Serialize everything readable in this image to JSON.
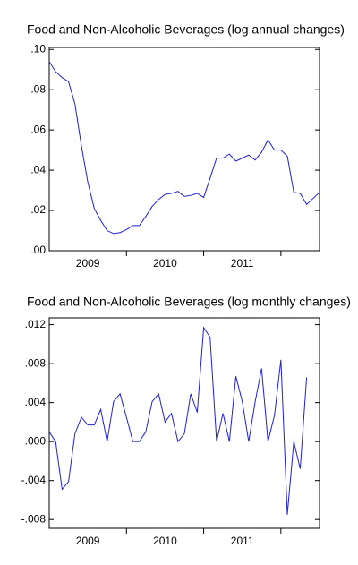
{
  "chart_data": [
    {
      "type": "line",
      "title": "Food and Non-Alcoholic Beverages (log annual changes)",
      "x": [
        2009,
        2009.083,
        2009.167,
        2009.25,
        2009.333,
        2009.417,
        2009.5,
        2009.583,
        2009.667,
        2009.75,
        2009.833,
        2009.917,
        2010,
        2010.083,
        2010.167,
        2010.25,
        2010.333,
        2010.417,
        2010.5,
        2010.583,
        2010.667,
        2010.75,
        2010.833,
        2010.917,
        2011,
        2011.083,
        2011.167,
        2011.25,
        2011.333,
        2011.417,
        2011.5,
        2011.583,
        2011.667,
        2011.75,
        2011.833,
        2011.917,
        2012,
        2012.083,
        2012.167,
        2012.25,
        2012.333,
        2012.417,
        2012.5
      ],
      "series": [
        {
          "color": "#1f1fd6",
          "values": [
            0.094,
            0.089,
            0.086,
            0.084,
            0.073,
            0.052,
            0.034,
            0.021,
            0.015,
            0.01,
            0.0085,
            0.009,
            0.0105,
            0.0125,
            0.0125,
            0.017,
            0.022,
            0.0255,
            0.028,
            0.0285,
            0.0295,
            0.027,
            0.0275,
            0.0285,
            0.0265,
            0.036,
            0.046,
            0.046,
            0.048,
            0.0445,
            0.046,
            0.0475,
            0.045,
            0.049,
            0.055,
            0.05,
            0.05,
            0.047,
            0.029,
            0.0285,
            0.023,
            0.026,
            0.029
          ]
        }
      ],
      "xlim": [
        2009,
        2012.5
      ],
      "xticks": [
        {
          "value": 2009.5,
          "label": "2009"
        },
        {
          "value": 2010.5,
          "label": "2010"
        },
        {
          "value": 2011.5,
          "label": "2011"
        }
      ],
      "ylim": [
        0,
        0.101
      ],
      "yticks": [
        {
          "value": 0,
          "label": ".00"
        },
        {
          "value": 0.02,
          "label": ".02"
        },
        {
          "value": 0.04,
          "label": ".04"
        },
        {
          "value": 0.06,
          "label": ".06"
        },
        {
          "value": 0.08,
          "label": ".08"
        },
        {
          "value": 0.1,
          "label": ".10"
        }
      ]
    },
    {
      "type": "line",
      "title": "Food and Non-Alcoholic Beverages (log monthly changes)",
      "x": [
        2009,
        2009.083,
        2009.167,
        2009.25,
        2009.333,
        2009.417,
        2009.5,
        2009.583,
        2009.667,
        2009.75,
        2009.833,
        2009.917,
        2010,
        2010.083,
        2010.167,
        2010.25,
        2010.333,
        2010.417,
        2010.5,
        2010.583,
        2010.667,
        2010.75,
        2010.833,
        2010.917,
        2011,
        2011.083,
        2011.167,
        2011.25,
        2011.333,
        2011.417,
        2011.5,
        2011.583,
        2011.667,
        2011.75,
        2011.833,
        2011.917,
        2012,
        2012.083,
        2012.167,
        2012.25,
        2012.333,
        2012.417,
        2012.5
      ],
      "series": [
        {
          "color": "#1f1fd6",
          "values": [
            0.001,
            0.0,
            -0.0049,
            -0.0041,
            0.0008,
            0.0025,
            0.0017,
            0.0017,
            0.0033,
            0.0,
            0.0041,
            0.0049,
            0.0025,
            0.0,
            0.0,
            0.001,
            0.0041,
            0.0049,
            0.002,
            0.0029,
            0.0,
            0.0008,
            0.0049,
            0.003,
            0.0117,
            0.0107,
            0.0,
            0.0029,
            0.0,
            0.0067,
            0.0041,
            0.0,
            0.0041,
            0.0075,
            0.0,
            0.0027,
            0.0084,
            -0.0075,
            0.0,
            -0.0028,
            0.0066,
            null,
            null
          ]
        }
      ],
      "xlim": [
        2009,
        2012.5
      ],
      "xticks": [
        {
          "value": 2009.5,
          "label": "2009"
        },
        {
          "value": 2010.5,
          "label": "2010"
        },
        {
          "value": 2011.5,
          "label": "2011"
        }
      ],
      "ylim": [
        -0.0089,
        0.0127
      ],
      "yticks": [
        {
          "value": -0.008,
          "label": "-.008"
        },
        {
          "value": -0.004,
          "label": "-.004"
        },
        {
          "value": 0,
          "label": ".000"
        },
        {
          "value": 0.004,
          "label": ".004"
        },
        {
          "value": 0.008,
          "label": ".008"
        },
        {
          "value": 0.012,
          "label": ".012"
        }
      ]
    }
  ]
}
